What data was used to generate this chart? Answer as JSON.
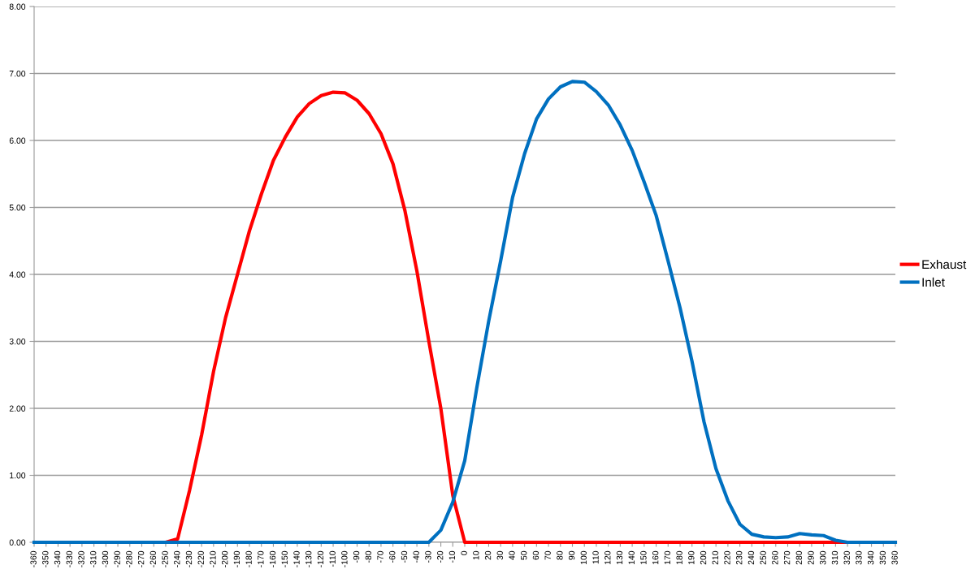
{
  "chart_data": {
    "type": "line",
    "categories": [
      "-360",
      "-350",
      "-340",
      "-330",
      "-320",
      "-310",
      "-300",
      "-290",
      "-280",
      "-270",
      "-260",
      "-250",
      "-240",
      "-230",
      "-220",
      "-210",
      "-200",
      "-190",
      "-180",
      "-170",
      "-160",
      "-150",
      "-140",
      "-130",
      "-120",
      "-110",
      "-100",
      "-90",
      "-80",
      "-70",
      "-60",
      "-50",
      "-40",
      "-30",
      "-20",
      "-10",
      "0",
      "10",
      "20",
      "30",
      "40",
      "50",
      "60",
      "70",
      "80",
      "90",
      "100",
      "110",
      "120",
      "130",
      "140",
      "150",
      "160",
      "170",
      "180",
      "190",
      "200",
      "210",
      "220",
      "230",
      "240",
      "250",
      "260",
      "270",
      "280",
      "290",
      "300",
      "310",
      "320",
      "330",
      "340",
      "350",
      "360"
    ],
    "series": [
      {
        "name": "Exhaust",
        "color": "#ff0000",
        "values": [
          null,
          null,
          null,
          null,
          null,
          null,
          null,
          null,
          null,
          null,
          0,
          0,
          0.05,
          0.78,
          1.6,
          2.55,
          3.35,
          4.0,
          4.65,
          5.2,
          5.7,
          6.05,
          6.35,
          6.55,
          6.67,
          6.72,
          6.71,
          6.6,
          6.4,
          6.1,
          5.65,
          4.95,
          4.05,
          3.0,
          2.0,
          0.7,
          0,
          0,
          0,
          0,
          0,
          0,
          0,
          0,
          0,
          0,
          0,
          0,
          0,
          0,
          0,
          0,
          0,
          0,
          0,
          0,
          0,
          0,
          0,
          0,
          0,
          0,
          0,
          0,
          0,
          0,
          0,
          0,
          0,
          0,
          null,
          null,
          null
        ]
      },
      {
        "name": "Inlet",
        "color": "#0070c0",
        "values": [
          0,
          0,
          0,
          0,
          0,
          0,
          0,
          0,
          0,
          0,
          0,
          0,
          0,
          0,
          0,
          0,
          0,
          0,
          0,
          0,
          0,
          0,
          0,
          0,
          0,
          0,
          0,
          0,
          0,
          0,
          0,
          0,
          0,
          0,
          0.18,
          0.6,
          1.22,
          2.3,
          3.3,
          4.2,
          5.15,
          5.8,
          6.32,
          6.62,
          6.8,
          6.88,
          6.87,
          6.73,
          6.53,
          6.23,
          5.85,
          5.38,
          4.88,
          4.2,
          3.5,
          2.7,
          1.8,
          1.1,
          0.62,
          0.27,
          0.12,
          0.08,
          0.07,
          0.08,
          0.13,
          0.11,
          0.1,
          0.03,
          0,
          0,
          0,
          0,
          0
        ]
      }
    ],
    "ylim": [
      0,
      8
    ],
    "yticks": [
      {
        "value": 0,
        "label": "0.00"
      },
      {
        "value": 1,
        "label": "1.00"
      },
      {
        "value": 2,
        "label": "2.00"
      },
      {
        "value": 3,
        "label": "3.00"
      },
      {
        "value": 4,
        "label": "4.00"
      },
      {
        "value": 5,
        "label": "5.00"
      },
      {
        "value": 6,
        "label": "6.00"
      },
      {
        "value": 7,
        "label": "7.00"
      },
      {
        "value": 8,
        "label": "8.00"
      }
    ],
    "grid": "y",
    "legend": "right",
    "marker": "none",
    "line_style": "solid"
  }
}
